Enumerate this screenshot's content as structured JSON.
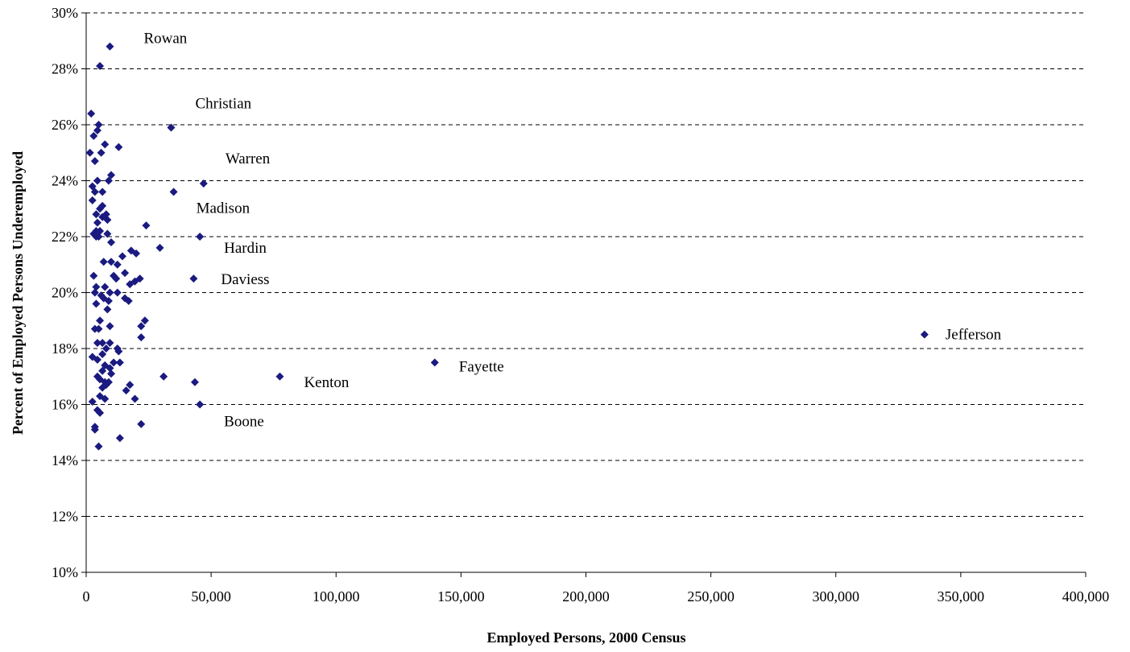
{
  "chart_data": {
    "type": "scatter",
    "xlabel": "Employed Persons, 2000 Census",
    "ylabel": "Percent of Employed Persons Underemployed",
    "xlim": [
      0,
      400000
    ],
    "ylim": [
      10,
      30
    ],
    "x_ticks": [
      "0",
      "50,000",
      "100,000",
      "150,000",
      "200,000",
      "250,000",
      "300,000",
      "350,000",
      "400,000"
    ],
    "y_ticks": [
      "10%",
      "12%",
      "14%",
      "16%",
      "18%",
      "20%",
      "22%",
      "24%",
      "26%",
      "28%",
      "30%"
    ],
    "grid": "horizontal dashed",
    "marker_color": "#1a1a80",
    "series": [
      {
        "points": [
          [
            9500,
            28.8
          ],
          [
            5500,
            28.1
          ],
          [
            34000,
            25.9
          ],
          [
            47000,
            23.9
          ],
          [
            35000,
            23.6
          ],
          [
            45500,
            22.0
          ],
          [
            43000,
            20.5
          ],
          [
            29500,
            21.6
          ],
          [
            24000,
            22.4
          ],
          [
            45500,
            16.0
          ],
          [
            43500,
            16.8
          ],
          [
            31000,
            17.0
          ],
          [
            77500,
            17.0
          ],
          [
            139500,
            17.5
          ],
          [
            335500,
            18.5
          ],
          [
            2000,
            26.4
          ],
          [
            1500,
            25.0
          ],
          [
            4500,
            25.8
          ],
          [
            5000,
            26.0
          ],
          [
            3000,
            25.6
          ],
          [
            7500,
            25.3
          ],
          [
            6000,
            25.0
          ],
          [
            13000,
            25.2
          ],
          [
            3500,
            24.7
          ],
          [
            10000,
            24.2
          ],
          [
            9000,
            24.0
          ],
          [
            4500,
            24.0
          ],
          [
            6500,
            23.6
          ],
          [
            2500,
            23.8
          ],
          [
            3500,
            23.6
          ],
          [
            2500,
            23.3
          ],
          [
            5500,
            23.0
          ],
          [
            6500,
            23.1
          ],
          [
            4000,
            22.8
          ],
          [
            8000,
            22.8
          ],
          [
            8500,
            22.6
          ],
          [
            6500,
            22.7
          ],
          [
            4500,
            22.5
          ],
          [
            4000,
            22.2
          ],
          [
            5500,
            22.2
          ],
          [
            3000,
            22.1
          ],
          [
            8500,
            22.1
          ],
          [
            5000,
            22.0
          ],
          [
            4000,
            22.0
          ],
          [
            10000,
            21.8
          ],
          [
            18000,
            21.5
          ],
          [
            20000,
            21.4
          ],
          [
            14500,
            21.3
          ],
          [
            7000,
            21.1
          ],
          [
            10000,
            21.1
          ],
          [
            12500,
            21.0
          ],
          [
            15500,
            20.7
          ],
          [
            11000,
            20.6
          ],
          [
            3000,
            20.6
          ],
          [
            12000,
            20.5
          ],
          [
            21500,
            20.5
          ],
          [
            19500,
            20.4
          ],
          [
            17500,
            20.3
          ],
          [
            4000,
            20.2
          ],
          [
            7500,
            20.2
          ],
          [
            3500,
            20.0
          ],
          [
            9500,
            20.0
          ],
          [
            12500,
            20.0
          ],
          [
            6000,
            19.9
          ],
          [
            7000,
            19.8
          ],
          [
            15500,
            19.8
          ],
          [
            9000,
            19.7
          ],
          [
            17000,
            19.7
          ],
          [
            4000,
            19.6
          ],
          [
            8500,
            19.4
          ],
          [
            5500,
            19.0
          ],
          [
            23500,
            19.0
          ],
          [
            22000,
            18.8
          ],
          [
            9500,
            18.8
          ],
          [
            3500,
            18.7
          ],
          [
            5000,
            18.7
          ],
          [
            22000,
            18.4
          ],
          [
            6500,
            18.2
          ],
          [
            9500,
            18.2
          ],
          [
            4500,
            18.2
          ],
          [
            12500,
            18.0
          ],
          [
            8000,
            18.0
          ],
          [
            13000,
            17.9
          ],
          [
            6500,
            17.8
          ],
          [
            2500,
            17.7
          ],
          [
            4500,
            17.6
          ],
          [
            11000,
            17.5
          ],
          [
            13500,
            17.5
          ],
          [
            7500,
            17.4
          ],
          [
            9500,
            17.3
          ],
          [
            6500,
            17.2
          ],
          [
            10000,
            17.1
          ],
          [
            4500,
            17.0
          ],
          [
            5500,
            16.9
          ],
          [
            7500,
            16.8
          ],
          [
            9000,
            16.8
          ],
          [
            8000,
            16.7
          ],
          [
            17500,
            16.7
          ],
          [
            6500,
            16.6
          ],
          [
            16000,
            16.5
          ],
          [
            5500,
            16.3
          ],
          [
            7500,
            16.2
          ],
          [
            19500,
            16.2
          ],
          [
            2500,
            16.1
          ],
          [
            4500,
            15.8
          ],
          [
            5500,
            15.7
          ],
          [
            22000,
            15.3
          ],
          [
            3500,
            15.2
          ],
          [
            3500,
            15.1
          ],
          [
            13500,
            14.8
          ],
          [
            5000,
            14.5
          ]
        ]
      }
    ],
    "labels": [
      {
        "text": "Rowan",
        "x": 9500,
        "y": 28.8
      },
      {
        "text": "Christian",
        "x": 34000,
        "y": 25.9
      },
      {
        "text": "Warren",
        "x": 47000,
        "y": 23.9
      },
      {
        "text": "Madison",
        "x": 35000,
        "y": 23.6
      },
      {
        "text": "Hardin",
        "x": 45500,
        "y": 22.0
      },
      {
        "text": "Daviess",
        "x": 43000,
        "y": 20.5
      },
      {
        "text": "Jefferson",
        "x": 335500,
        "y": 18.5
      },
      {
        "text": "Fayette",
        "x": 139500,
        "y": 17.5
      },
      {
        "text": "Kenton",
        "x": 77500,
        "y": 17.0
      },
      {
        "text": "Boone",
        "x": 45500,
        "y": 16.0
      }
    ]
  }
}
